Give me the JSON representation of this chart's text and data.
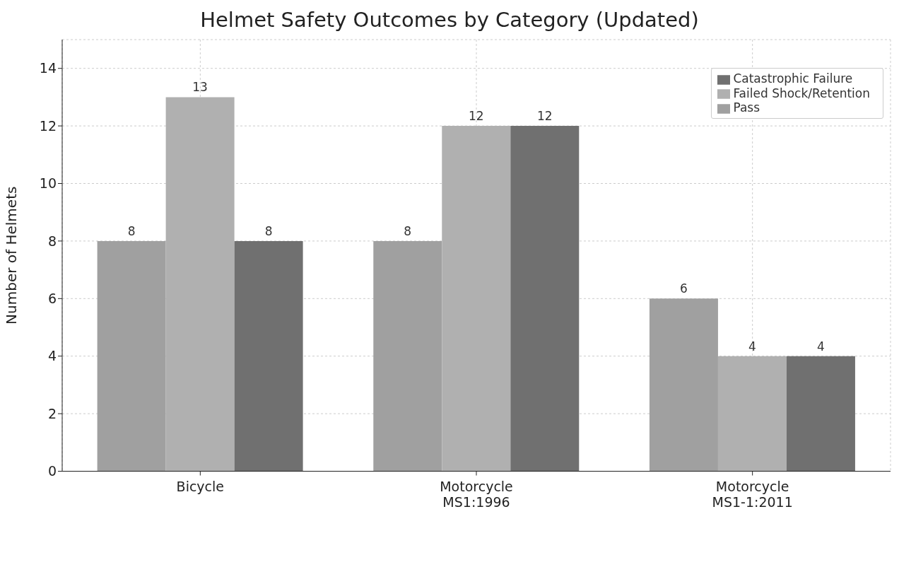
{
  "chart_data": {
    "type": "bar",
    "title": "Helmet Safety Outcomes by Category (Updated)",
    "ylabel": "Number of Helmets",
    "categories": [
      "Bicycle",
      "Motorcycle\nMS1:1996",
      "Motorcycle\nMS1-1:2011"
    ],
    "series": [
      {
        "name": "Pass",
        "color": "#a0a0a0",
        "values": [
          8,
          8,
          6
        ]
      },
      {
        "name": "Failed Shock/Retention",
        "color": "#b0b0b0",
        "values": [
          13,
          12,
          4
        ]
      },
      {
        "name": "Catastrophic Failure",
        "color": "#707070",
        "values": [
          8,
          12,
          4
        ]
      }
    ],
    "ylim": [
      0,
      15
    ],
    "yticks": [
      0,
      2,
      4,
      6,
      8,
      10,
      12,
      14
    ],
    "grid": true,
    "legend": "top right",
    "data_labels": true
  }
}
